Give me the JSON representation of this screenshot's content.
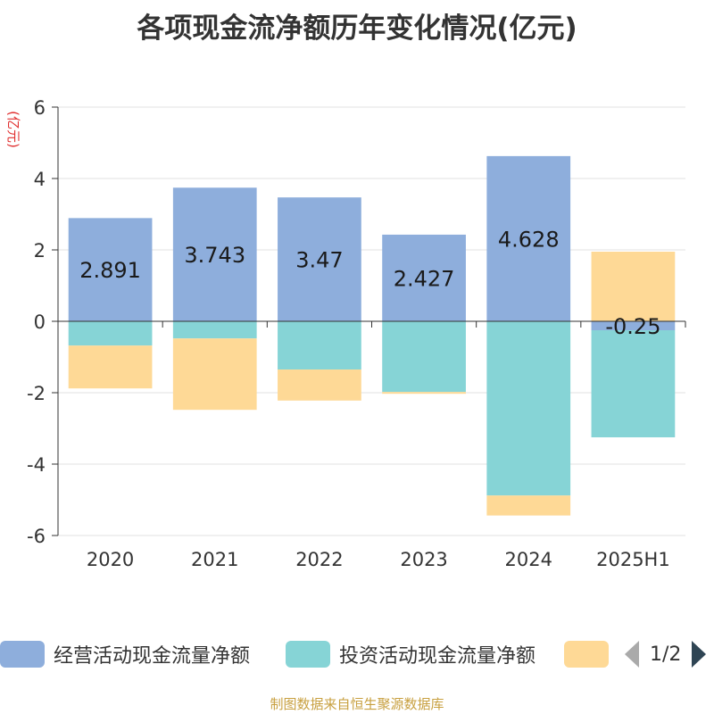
{
  "chart_data": {
    "type": "bar",
    "stacked": true,
    "title": "各项现金流净额历年变化情况(亿元)",
    "ylabel": "(亿元)",
    "categories": [
      "2020",
      "2021",
      "2022",
      "2023",
      "2024",
      "2025H1"
    ],
    "ylim": [
      -6,
      6
    ],
    "yticks": [
      -6,
      -4,
      -2,
      0,
      2,
      4,
      6
    ],
    "grid": true,
    "series": [
      {
        "name": "经营活动现金流量净额",
        "color": "#8eaedc",
        "values": [
          2.891,
          3.743,
          3.47,
          2.427,
          4.628,
          -0.25
        ]
      },
      {
        "name": "投资活动现金流量净额",
        "color": "#86d4d6",
        "values": [
          -0.68,
          -0.48,
          -1.35,
          -1.98,
          -4.88,
          -3.0
        ]
      },
      {
        "name": "",
        "color": "#fed996",
        "values": [
          -1.2,
          -2.0,
          -0.87,
          -0.05,
          -0.56,
          1.95
        ]
      }
    ],
    "data_labels": [
      "2.891",
      "3.743",
      "3.47",
      "2.427",
      "4.628",
      "-0.25"
    ]
  },
  "legend": {
    "page": "1/2"
  },
  "source": "制图数据来自恒生聚源数据库"
}
